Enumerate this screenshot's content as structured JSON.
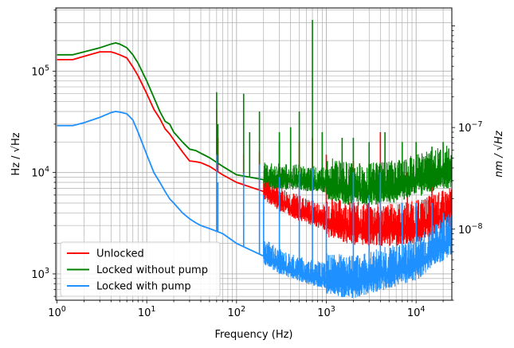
{
  "chart_data": {
    "type": "line",
    "xlabel": "Frequency (Hz)",
    "ylabel_left": "Hz / √Hz",
    "ylabel_right": "nm / √Hz",
    "x_scale": "log",
    "y_scale": "log",
    "xlim": [
      0.97,
      25000
    ],
    "ylim_left": [
      550,
      420000
    ],
    "ylim_right": [
      2e-09,
      1.5e-06
    ],
    "grid": true,
    "legend_position": "lower-left",
    "x_ticks": [
      {
        "value": 1,
        "base": "10",
        "exp": "0"
      },
      {
        "value": 10,
        "base": "10",
        "exp": "1"
      },
      {
        "value": 100,
        "base": "10",
        "exp": "2"
      },
      {
        "value": 1000,
        "base": "10",
        "exp": "3"
      },
      {
        "value": 10000,
        "base": "10",
        "exp": "4"
      }
    ],
    "y_ticks_left": [
      {
        "value": 1000,
        "base": "10",
        "exp": "3"
      },
      {
        "value": 10000,
        "base": "10",
        "exp": "4"
      },
      {
        "value": 100000,
        "base": "10",
        "exp": "5"
      }
    ],
    "y_ticks_right": [
      {
        "value": 1e-08,
        "base": "10",
        "exp": "−8"
      },
      {
        "value": 1e-07,
        "base": "10",
        "exp": "−7"
      }
    ],
    "series": [
      {
        "name": "Unlocked",
        "color": "#ff0000",
        "x": [
          1,
          1.5,
          2,
          3,
          4,
          4.5,
          5,
          6,
          7,
          8,
          10,
          12,
          14,
          16,
          18,
          20,
          25,
          30,
          35,
          40,
          50,
          70,
          100,
          200,
          300,
          500,
          1000,
          2000,
          5000,
          10000,
          25000
        ],
        "y": [
          130000,
          130000,
          140000,
          155000,
          155000,
          150000,
          145000,
          135000,
          110000,
          90000,
          60000,
          42000,
          34000,
          27000,
          24000,
          21000,
          16000,
          13000,
          12800,
          12500,
          11500,
          9500,
          8000,
          6500,
          5000,
          4000,
          3200,
          2700,
          2600,
          2800,
          3800
        ],
        "spikes": [
          [
            60,
            42000
          ],
          [
            62,
            22000
          ],
          [
            120,
            15000
          ],
          [
            180,
            16000
          ],
          [
            300,
            20000
          ],
          [
            500,
            20000
          ],
          [
            700,
            22000
          ],
          [
            1000,
            15000
          ],
          [
            2000,
            13000
          ],
          [
            4000,
            25000
          ],
          [
            8000,
            10000
          ],
          [
            15000,
            12000
          ]
        ]
      },
      {
        "name": "Locked without pump",
        "color": "#008000",
        "x": [
          1,
          1.5,
          2,
          3,
          4,
          4.5,
          5,
          6,
          7,
          8,
          10,
          12,
          14,
          16,
          18,
          20,
          25,
          30,
          35,
          40,
          50,
          70,
          100,
          200,
          300,
          500,
          1000,
          2000,
          5000,
          10000,
          25000
        ],
        "y": [
          145000,
          145000,
          155000,
          170000,
          185000,
          190000,
          185000,
          170000,
          145000,
          120000,
          80000,
          55000,
          40000,
          32000,
          30000,
          25000,
          20000,
          17000,
          16500,
          15500,
          14000,
          11500,
          9500,
          8500,
          8200,
          8000,
          7500,
          6500,
          6800,
          8000,
          10000
        ],
        "spikes": [
          [
            60,
            62000
          ],
          [
            62,
            30000
          ],
          [
            120,
            60000
          ],
          [
            140,
            25000
          ],
          [
            180,
            40000
          ],
          [
            300,
            25000
          ],
          [
            400,
            28000
          ],
          [
            500,
            40000
          ],
          [
            700,
            320000
          ],
          [
            900,
            25000
          ],
          [
            1500,
            22000
          ],
          [
            2000,
            22000
          ],
          [
            3000,
            20000
          ],
          [
            4500,
            25000
          ],
          [
            7000,
            20000
          ],
          [
            10000,
            20000
          ],
          [
            15000,
            18000
          ],
          [
            20000,
            20000
          ]
        ]
      },
      {
        "name": "Locked with pump",
        "color": "#1e90ff",
        "x": [
          1,
          1.5,
          2,
          3,
          4,
          4.5,
          5,
          6,
          7,
          8,
          10,
          12,
          14,
          16,
          18,
          20,
          25,
          30,
          35,
          40,
          50,
          70,
          100,
          200,
          300,
          500,
          1000,
          2000,
          5000,
          10000,
          25000
        ],
        "y": [
          29000,
          29000,
          31000,
          35000,
          39000,
          40000,
          39500,
          38000,
          33000,
          25000,
          15000,
          10000,
          8000,
          6500,
          5500,
          5000,
          4000,
          3500,
          3200,
          3000,
          2800,
          2500,
          2000,
          1500,
          1200,
          1000,
          850,
          800,
          1000,
          1200,
          2200
        ],
        "spikes": [
          [
            60,
            15000
          ],
          [
            62,
            8000
          ],
          [
            120,
            10000
          ],
          [
            180,
            12000
          ],
          [
            200,
            6000
          ],
          [
            300,
            9000
          ],
          [
            500,
            10000
          ],
          [
            700,
            11000
          ],
          [
            1000,
            5000
          ],
          [
            2000,
            10000
          ],
          [
            3000,
            6000
          ],
          [
            4000,
            10000
          ],
          [
            7000,
            5000
          ],
          [
            10000,
            5000
          ],
          [
            15000,
            5000
          ],
          [
            20000,
            4000
          ]
        ]
      }
    ]
  }
}
